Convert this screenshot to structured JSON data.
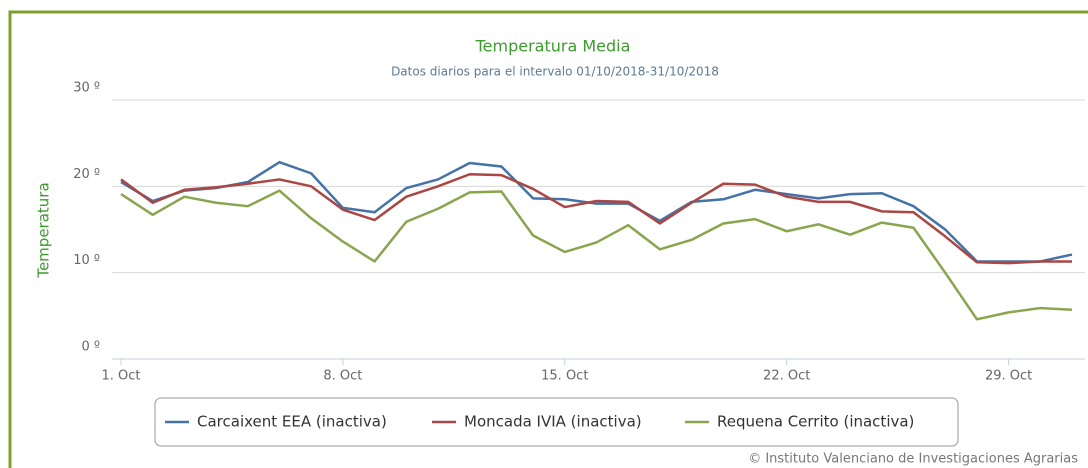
{
  "chart_data": {
    "type": "line",
    "title": "Temperatura Media",
    "subtitle": "Datos diarios para el intervalo 01/10/2018-31/10/2018",
    "y_label": "Temperatura",
    "credit": "© Instituto Valenciano de Investigaciones Agrarias",
    "categories": [
      "1. Oct",
      null,
      null,
      null,
      null,
      null,
      null,
      "8. Oct",
      null,
      null,
      null,
      null,
      null,
      null,
      "15. Oct",
      null,
      null,
      null,
      null,
      null,
      null,
      "22. Oct",
      null,
      null,
      null,
      null,
      null,
      null,
      "29. Oct",
      null,
      null
    ],
    "ylim": [
      0,
      30
    ],
    "yticks": [
      {
        "value": 0,
        "label": "0 º"
      },
      {
        "value": 10,
        "label": "10 º"
      },
      {
        "value": 20,
        "label": "20 º"
      },
      {
        "value": 30,
        "label": "30 º"
      }
    ],
    "grid": true,
    "legend": "bottom",
    "series": [
      {
        "name": "Carcaixent EEA (inactiva)",
        "color": "#4572a7",
        "values": [
          20.5,
          18.3,
          19.5,
          19.8,
          20.5,
          22.8,
          21.5,
          17.5,
          17.0,
          19.8,
          20.8,
          22.7,
          22.3,
          18.6,
          18.5,
          18.0,
          18.0,
          16.0,
          18.2,
          18.5,
          19.6,
          19.1,
          18.6,
          19.1,
          19.2,
          17.7,
          15.0,
          11.3,
          11.3,
          11.3,
          12.1
        ]
      },
      {
        "name": "Moncada IVIA (inactiva)",
        "color": "#aa4643",
        "values": [
          20.8,
          18.1,
          19.6,
          19.9,
          20.3,
          20.8,
          20.0,
          17.3,
          16.1,
          18.8,
          20.0,
          21.4,
          21.3,
          19.7,
          17.6,
          18.3,
          18.2,
          15.7,
          18.1,
          20.3,
          20.2,
          18.8,
          18.2,
          18.2,
          17.1,
          17.0,
          14.2,
          11.2,
          11.1,
          11.3,
          11.3
        ]
      },
      {
        "name": "Requena Cerrito (inactiva)",
        "color": "#89a54e",
        "values": [
          19.1,
          16.7,
          18.8,
          18.1,
          17.7,
          19.5,
          16.3,
          13.6,
          11.3,
          15.9,
          17.4,
          19.3,
          19.4,
          14.3,
          12.4,
          13.5,
          15.5,
          12.7,
          13.8,
          15.7,
          16.2,
          14.8,
          15.6,
          14.4,
          15.8,
          15.2,
          10.0,
          4.6,
          5.4,
          5.9,
          5.7
        ]
      }
    ]
  }
}
